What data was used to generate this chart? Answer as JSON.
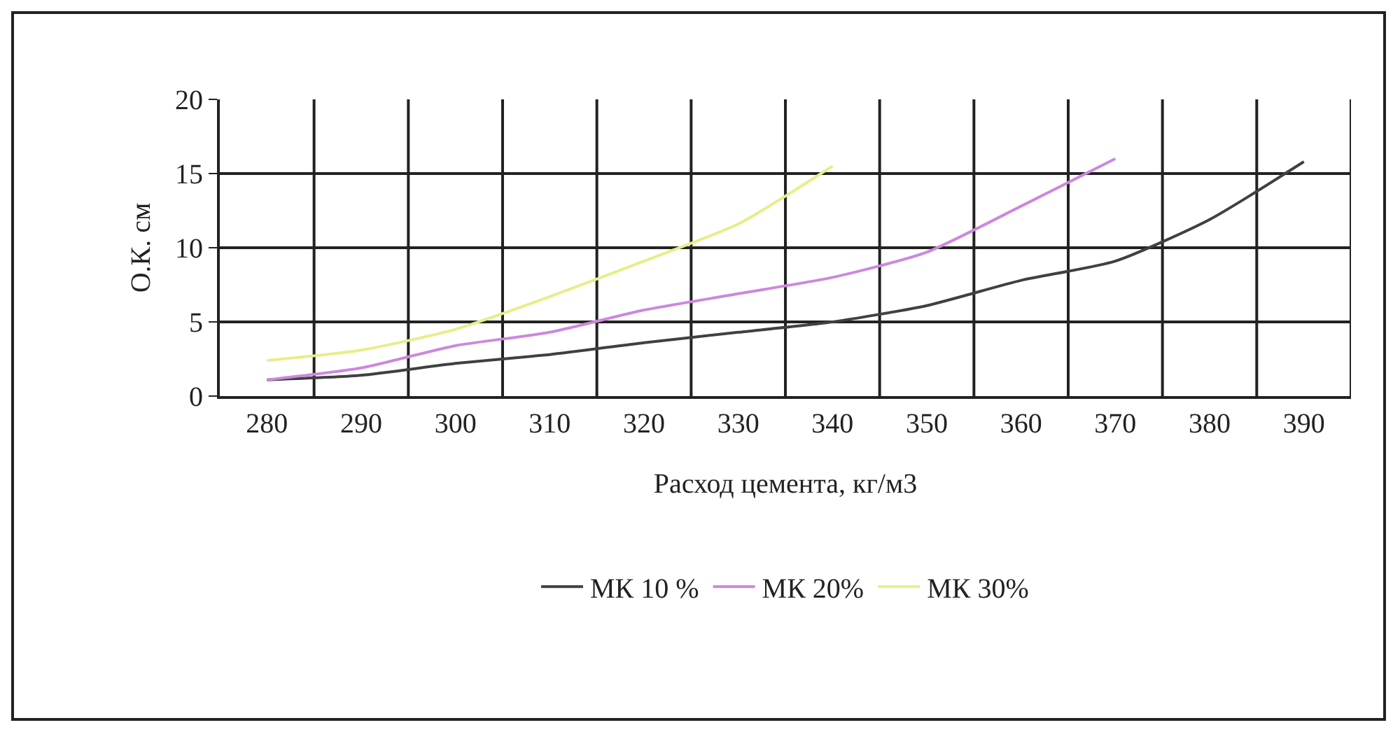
{
  "chart_data": {
    "type": "line",
    "xlabel": "Расход цемента, кг/м3",
    "ylabel": "О.К. см",
    "categories": [
      "280",
      "290",
      "300",
      "310",
      "320",
      "330",
      "340",
      "350",
      "360",
      "370",
      "380",
      "390"
    ],
    "series": [
      {
        "name": "МК 10 %",
        "color": "#404040",
        "values": [
          1.1,
          1.4,
          2.2,
          2.8,
          3.6,
          4.3,
          5.0,
          6.1,
          7.8,
          9.1,
          11.9,
          15.8
        ]
      },
      {
        "name": "МК 20%",
        "color": "#cc88dd",
        "values": [
          1.1,
          1.9,
          3.4,
          4.3,
          5.8,
          6.9,
          8.0,
          9.7,
          12.8,
          16.0,
          null,
          null
        ]
      },
      {
        "name": "МК 30%",
        "color": "#e6ee88",
        "values": [
          2.4,
          3.1,
          4.5,
          6.7,
          9.1,
          11.6,
          15.5,
          null,
          null,
          null,
          null,
          null
        ]
      }
    ],
    "ylim": [
      0,
      20
    ],
    "yticks": [
      0,
      5,
      10,
      15,
      20
    ],
    "grid": true,
    "legend": "bottom",
    "marker": "none",
    "line_style": "solid"
  }
}
